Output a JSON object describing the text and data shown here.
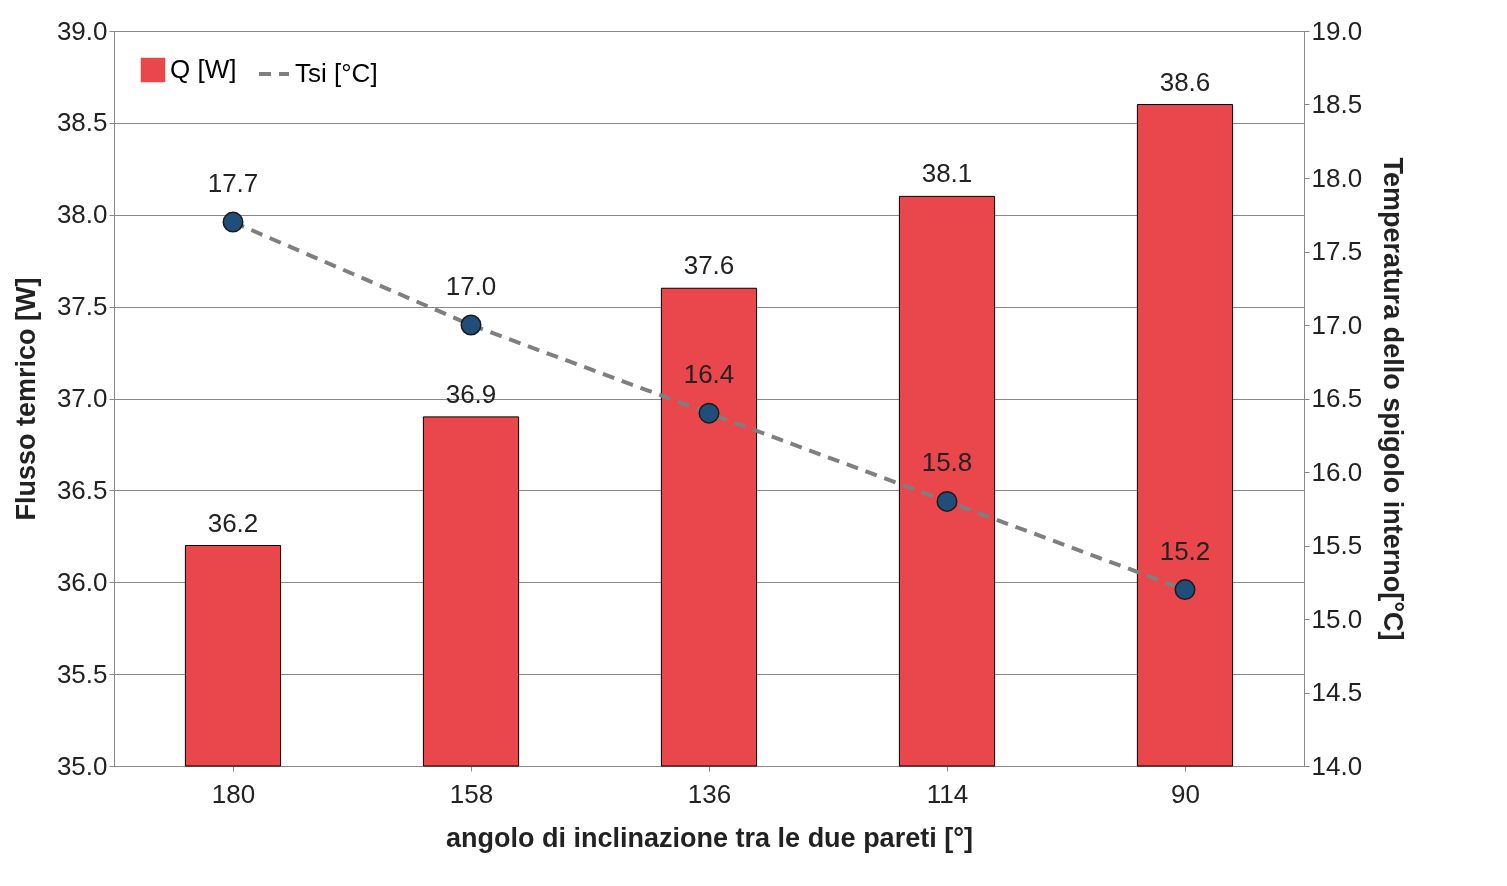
{
  "chart_data": {
    "type": "bar",
    "xlabel": "angolo  di inclinazione tra le due pareti [°]",
    "ylabel": "Flusso temrico [W]",
    "y2label": "Temperatura dello spigolo interno[°C]",
    "categories": [
      "180",
      "158",
      "136",
      "114",
      "90"
    ],
    "series": [
      {
        "name": "Q [W]",
        "color": "#e9474c",
        "values": [
          36.2,
          36.9,
          37.6,
          38.1,
          38.6
        ],
        "value_labels": [
          "36.2",
          "36.9",
          "37.6",
          "38.1",
          "38.6"
        ]
      },
      {
        "name": "Tsi [°C]",
        "type": "line",
        "axis": "y2",
        "color": "#7f7f7f",
        "marker": "circle",
        "line_style": "dashed",
        "values": [
          17.7,
          17.0,
          16.4,
          15.8,
          15.2
        ],
        "value_labels": [
          "17.7",
          "17.0",
          "16.4",
          "15.8",
          "15.2"
        ]
      }
    ],
    "ylim": [
      35,
      39
    ],
    "yticks": [
      {
        "value": 35,
        "label": "35.0"
      },
      {
        "value": 35.5,
        "label": "35.5"
      },
      {
        "value": 36,
        "label": "36.0"
      },
      {
        "value": 36.5,
        "label": "36.5"
      },
      {
        "value": 37,
        "label": "37.0"
      },
      {
        "value": 37.5,
        "label": "37.5"
      },
      {
        "value": 38,
        "label": "38.0"
      },
      {
        "value": 38.5,
        "label": "38.5"
      },
      {
        "value": 39,
        "label": "39.0"
      }
    ],
    "y2lim": [
      14,
      19
    ],
    "y2ticks": [
      {
        "value": 14,
        "label": "14.0"
      },
      {
        "value": 14.5,
        "label": "14.5"
      },
      {
        "value": 15,
        "label": "15.0"
      },
      {
        "value": 15.5,
        "label": "15.5"
      },
      {
        "value": 16,
        "label": "16.0"
      },
      {
        "value": 16.5,
        "label": "16.5"
      },
      {
        "value": 17,
        "label": "17.0"
      },
      {
        "value": 17.5,
        "label": "17.5"
      },
      {
        "value": 18,
        "label": "18.0"
      },
      {
        "value": 18.5,
        "label": "18.5"
      },
      {
        "value": 19,
        "label": "19.0"
      }
    ],
    "grid": "y",
    "legend": "top left"
  }
}
